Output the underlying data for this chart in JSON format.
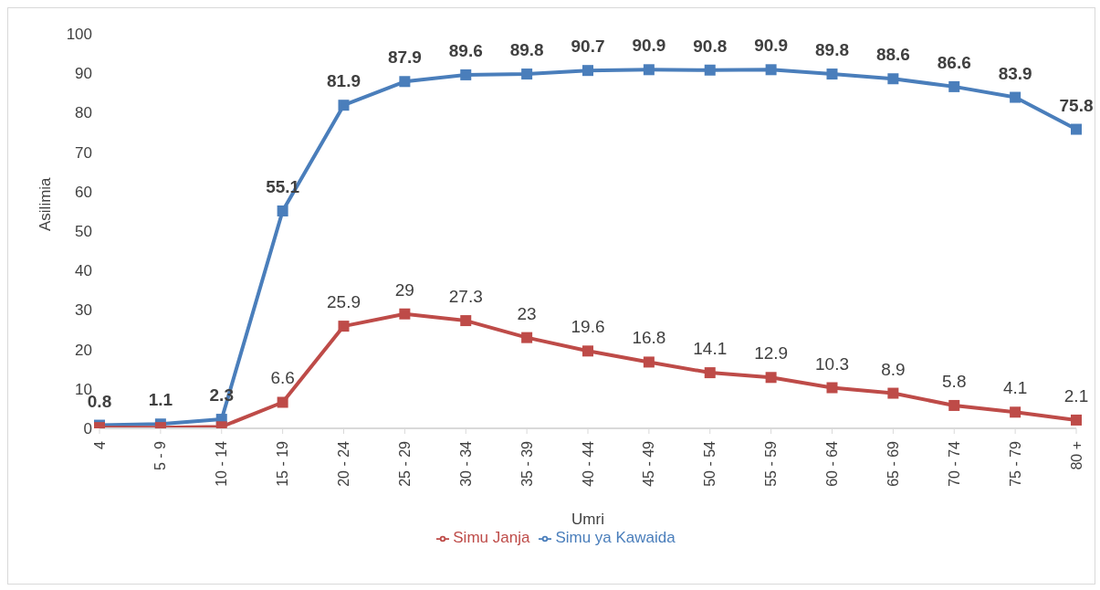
{
  "chart_data": {
    "type": "line",
    "xlabel": "Umri",
    "ylabel": "Asilimia",
    "categories": [
      "4",
      "5 - 9",
      "10 - 14",
      "15 - 19",
      "20 - 24",
      "25 - 29",
      "30 - 34",
      "35 - 39",
      "40 - 44",
      "45 - 49",
      "50 - 54",
      "55 - 59",
      "60 - 64",
      "65 - 69",
      "70 - 74",
      "75 - 79",
      "80 +"
    ],
    "series": [
      {
        "name": "Simu ya Kawaida",
        "color": "#4a7ebb",
        "values": [
          0.8,
          1.1,
          2.3,
          55.1,
          81.9,
          87.9,
          89.6,
          89.8,
          90.7,
          90.9,
          90.8,
          90.9,
          89.8,
          88.6,
          86.6,
          83.9,
          75.8
        ],
        "value_labels": [
          "0.8",
          "1.1",
          "2.3",
          "55.1",
          "81.9",
          "87.9",
          "89.6",
          "89.8",
          "90.7",
          "90.9",
          "90.8",
          "90.9",
          "89.8",
          "88.6",
          "86.6",
          "83.9",
          "75.8"
        ]
      },
      {
        "name": "Simu Janja",
        "color": "#be4b48",
        "values": [
          0.2,
          0.2,
          0.4,
          6.6,
          25.9,
          29,
          27.3,
          23,
          19.6,
          16.8,
          14.1,
          12.9,
          10.3,
          8.9,
          5.8,
          4.1,
          2.1
        ],
        "value_labels": [
          null,
          null,
          null,
          "6.6",
          "25.9",
          "29",
          "27.3",
          "23",
          "19.6",
          "16.8",
          "14.1",
          "12.9",
          "10.3",
          "8.9",
          "5.8",
          "4.1",
          "2.1"
        ]
      }
    ],
    "ylim": [
      0,
      100
    ],
    "yticks": [
      0,
      10,
      20,
      30,
      40,
      50,
      60,
      70,
      80,
      90,
      100
    ],
    "grid": false,
    "legend": "bottom",
    "marker": "square",
    "line_style": "solid"
  }
}
